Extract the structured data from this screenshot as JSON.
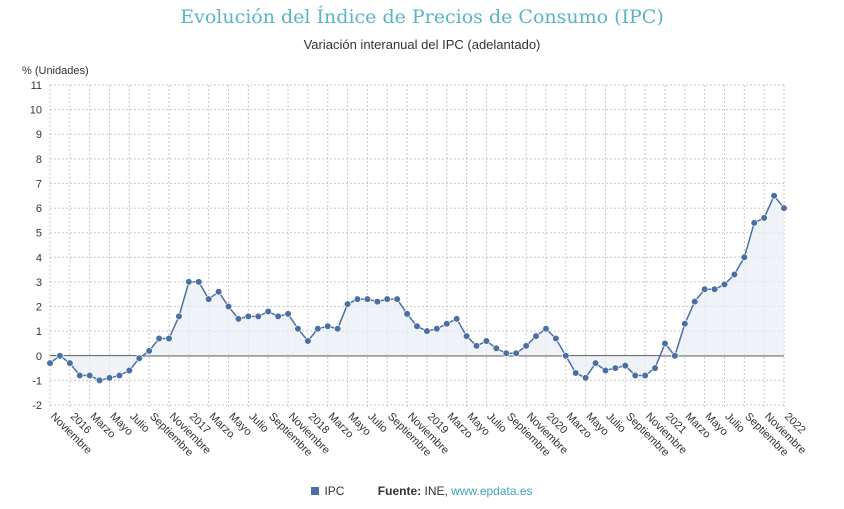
{
  "chart_data": {
    "type": "area",
    "title": "Evolución del Índice de Precios de Consumo (IPC)",
    "subtitle": "Variación interanual del IPC (adelantado)",
    "ylabel": "% (Unidades)",
    "ylim": [
      -2,
      11
    ],
    "yticks": [
      -2,
      -1,
      0,
      1,
      2,
      3,
      4,
      5,
      6,
      7,
      8,
      9,
      10,
      11
    ],
    "grid": true,
    "legend": "bottom",
    "x_tick_labels": [
      "Noviembre",
      "2016",
      "Marzo",
      "Mayo",
      "Julio",
      "Septiembre",
      "Noviembre",
      "2017",
      "Marzo",
      "Mayo",
      "Julio",
      "Septiembre",
      "Noviembre",
      "2018",
      "Marzo",
      "Mayo",
      "Julio",
      "Septiembre",
      "Noviembre",
      "2019",
      "Marzo",
      "Mayo",
      "Julio",
      "Septiembre",
      "Noviembre",
      "2020",
      "Marzo",
      "Mayo",
      "Julio",
      "Septiembre",
      "Noviembre",
      "2021",
      "Marzo",
      "Mayo",
      "Julio",
      "Septiembre",
      "Noviembre",
      "2022"
    ],
    "series": [
      {
        "name": "IPC",
        "color": "#4a6fa5",
        "values": [
          -0.3,
          0.0,
          -0.3,
          -0.8,
          -0.8,
          -1.0,
          -0.9,
          -0.8,
          -0.6,
          -0.1,
          0.2,
          0.7,
          0.7,
          1.6,
          3.0,
          3.0,
          2.3,
          2.6,
          2.0,
          1.5,
          1.6,
          1.6,
          1.8,
          1.6,
          1.7,
          1.1,
          0.6,
          1.1,
          1.2,
          1.1,
          2.1,
          2.3,
          2.3,
          2.2,
          2.3,
          2.3,
          1.7,
          1.2,
          1.0,
          1.1,
          1.3,
          1.5,
          0.8,
          0.4,
          0.6,
          0.3,
          0.1,
          0.1,
          0.4,
          0.8,
          1.1,
          0.7,
          0.0,
          -0.7,
          -0.9,
          -0.3,
          -0.6,
          -0.5,
          -0.4,
          -0.8,
          -0.8,
          -0.5,
          0.5,
          0.0,
          1.3,
          2.2,
          2.7,
          2.7,
          2.9,
          3.3,
          4.0,
          5.4,
          5.6,
          6.5,
          6.0
        ]
      }
    ]
  },
  "legend": {
    "series_name": "IPC",
    "source_label": "Fuente:",
    "source_text": "INE, ",
    "source_link": "www.epdata.es"
  }
}
